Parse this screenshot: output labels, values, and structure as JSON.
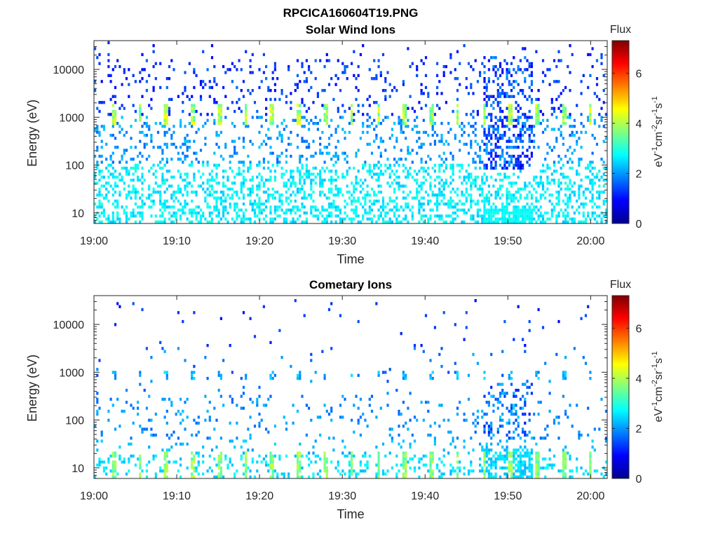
{
  "figure": {
    "title": "RPCICA160604T19.PNG"
  },
  "chart_data": [
    {
      "type": "heatmap",
      "title": "Solar Wind Ions",
      "xlabel": "Time",
      "ylabel": "Energy (eV)",
      "xlim": [
        "19:00",
        "20:02"
      ],
      "ylim": [
        6,
        40000
      ],
      "yscale": "log",
      "xticks": [
        "19:00",
        "19:10",
        "19:20",
        "19:30",
        "19:40",
        "19:50",
        "20:00"
      ],
      "yticks": [
        "10",
        "100",
        "1000",
        "10000"
      ],
      "grid": false,
      "colorbar": {
        "label": "Flux",
        "unit": "eV-1cm-2sr-1s-1",
        "range": [
          0,
          7.3
        ],
        "ticks": [
          "0",
          "2",
          "4",
          "6"
        ],
        "colormap": "jet"
      },
      "features": [
        {
          "description": "periodic bright band near 800 eV every ~3.2 min",
          "energy_eV": 800,
          "flux": 4.5
        },
        {
          "description": "scattered background counts 100–30000 eV",
          "flux_range": [
            0.8,
            1.8
          ]
        },
        {
          "description": "dense low-energy counts below 100 eV",
          "flux_range": [
            2.2,
            3.0
          ]
        },
        {
          "description": "enhanced flux interval 19:47–19:53",
          "flux_range": [
            0.8,
            2.6
          ]
        }
      ]
    },
    {
      "type": "heatmap",
      "title": "Cometary Ions",
      "xlabel": "Time",
      "ylabel": "Energy (eV)",
      "xlim": [
        "19:00",
        "20:02"
      ],
      "ylim": [
        6,
        40000
      ],
      "yscale": "log",
      "xticks": [
        "19:00",
        "19:10",
        "19:20",
        "19:30",
        "19:40",
        "19:50",
        "20:00"
      ],
      "yticks": [
        "10",
        "100",
        "1000",
        "10000"
      ],
      "grid": false,
      "colorbar": {
        "label": "Flux",
        "unit": "eV-1cm-2sr-1s-1",
        "range": [
          0,
          7.3
        ],
        "ticks": [
          "0",
          "2",
          "4",
          "6"
        ],
        "colormap": "jet"
      },
      "features": [
        {
          "description": "periodic band near 800 eV",
          "energy_eV": 800,
          "flux": 2.2
        },
        {
          "description": "bright low-energy bursts near 10 eV every ~3.2 min",
          "energy_eV": 10,
          "flux": 3.8
        },
        {
          "description": "scattered counts 50–300 eV",
          "flux_range": [
            1.5,
            2.3
          ]
        },
        {
          "description": "enhanced flux interval 19:47–19:53",
          "flux_range": [
            1.0,
            2.6
          ]
        }
      ]
    }
  ]
}
